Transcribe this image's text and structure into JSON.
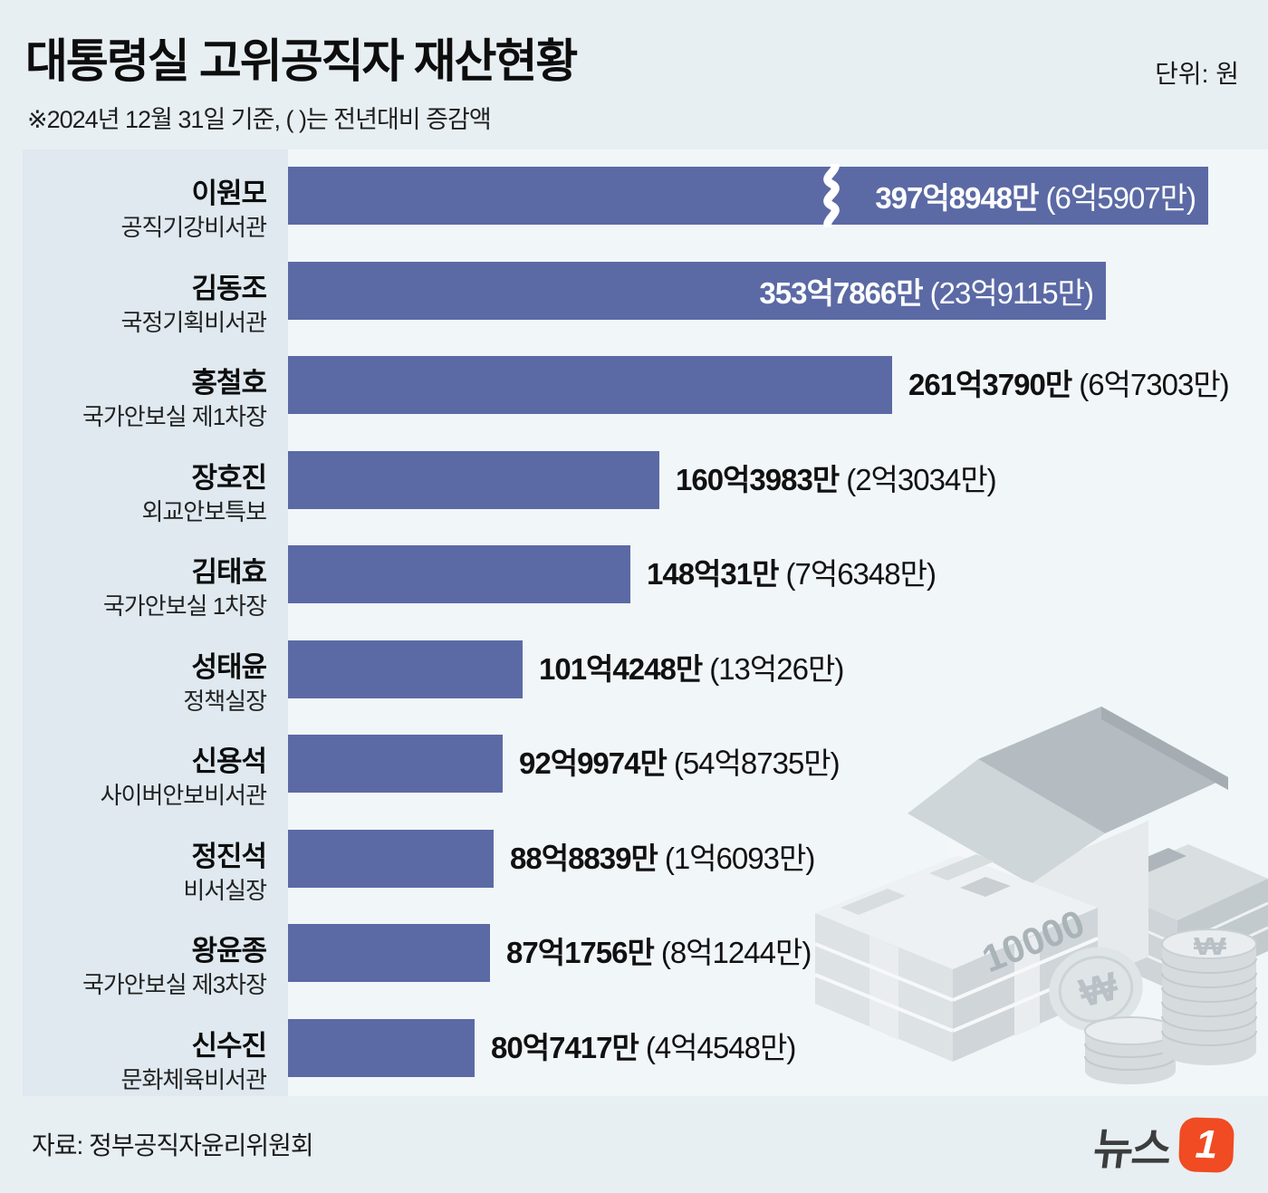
{
  "header": {
    "title": "대통령실 고위공직자 재산현황",
    "unit_label": "단위: 원",
    "note": "※2024년 12월 31일 기준, ( )는 전년대비 증감액"
  },
  "chart_data": {
    "type": "bar",
    "orientation": "horizontal",
    "title": "대통령실 고위공직자 재산현황",
    "value_unit": "원",
    "value_format": "억(100M won) + 만(10k won), change vs previous year in parentheses",
    "xlim": [
      0,
      400
    ],
    "categories": [
      "이원모",
      "김동조",
      "홍철호",
      "장호진",
      "김태효",
      "성태윤",
      "신용석",
      "정진석",
      "왕윤종",
      "신수진"
    ],
    "rows": [
      {
        "name": "이원모",
        "position": "공직기강비서관",
        "value_label": "397억8948만",
        "change_label": "(6억5907만)",
        "value_eok": 397.8948,
        "change_eok": 6.5907,
        "label_inside": true,
        "axis_break": true
      },
      {
        "name": "김동조",
        "position": "국정기획비서관",
        "value_label": "353억7866만",
        "change_label": "(23억9115만)",
        "value_eok": 353.7866,
        "change_eok": 23.9115,
        "label_inside": true,
        "axis_break": false
      },
      {
        "name": "홍철호",
        "position": "국가안보실 제1차장",
        "value_label": "261억3790만",
        "change_label": "(6억7303만)",
        "value_eok": 261.379,
        "change_eok": 6.7303,
        "label_inside": false,
        "axis_break": false
      },
      {
        "name": "장호진",
        "position": "외교안보특보",
        "value_label": "160억3983만",
        "change_label": "(2억3034만)",
        "value_eok": 160.3983,
        "change_eok": 2.3034,
        "label_inside": false,
        "axis_break": false
      },
      {
        "name": "김태효",
        "position": "국가안보실 1차장",
        "value_label": "148억31만",
        "change_label": "(7억6348만)",
        "value_eok": 148.0031,
        "change_eok": 7.6348,
        "label_inside": false,
        "axis_break": false
      },
      {
        "name": "성태윤",
        "position": "정책실장",
        "value_label": "101억4248만",
        "change_label": "(13억26만)",
        "value_eok": 101.4248,
        "change_eok": 13.0026,
        "label_inside": false,
        "axis_break": false
      },
      {
        "name": "신용석",
        "position": "사이버안보비서관",
        "value_label": "92억9974만",
        "change_label": "(54억8735만)",
        "value_eok": 92.9974,
        "change_eok": 54.8735,
        "label_inside": false,
        "axis_break": false
      },
      {
        "name": "정진석",
        "position": "비서실장",
        "value_label": "88억8839만",
        "change_label": "(1억6093만)",
        "value_eok": 88.8839,
        "change_eok": 1.6093,
        "label_inside": false,
        "axis_break": false
      },
      {
        "name": "왕윤종",
        "position": "국가안보실 제3차장",
        "value_label": "87억1756만",
        "change_label": "(8억1244만)",
        "value_eok": 87.1756,
        "change_eok": 8.1244,
        "label_inside": false,
        "axis_break": false
      },
      {
        "name": "신수진",
        "position": "문화체육비서관",
        "value_label": "80억7417만",
        "change_label": "(4억4548만)",
        "value_eok": 80.7417,
        "change_eok": 4.4548,
        "label_inside": false,
        "axis_break": false
      }
    ]
  },
  "illustration": {
    "description": "light gray isometric house standing on stacks of 10000-won banknotes with stacks of ₩ coins",
    "banknote_text": "10000",
    "coin_symbol": "₩"
  },
  "footer": {
    "source": "자료: 정부공직자윤리위원회",
    "logo_text": "뉴스",
    "logo_badge": "1"
  },
  "colors": {
    "bar": "#5b6aa5",
    "page_bg": "#e8eff3",
    "label_column_bg": "#dfe9ef",
    "track_bg": "#f1f6f8",
    "logo_orange": "#f04b22"
  }
}
